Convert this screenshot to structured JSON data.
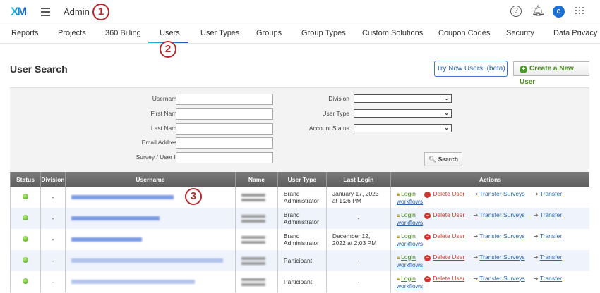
{
  "header": {
    "logo": "XM",
    "section": "Admin",
    "avatar_initial": "C"
  },
  "annotations": [
    "1",
    "2",
    "3"
  ],
  "tabs": [
    "Reports",
    "Projects",
    "360 Billing",
    "Users",
    "User Types",
    "Groups",
    "Group Types",
    "Custom Solutions",
    "Coupon Codes",
    "Security",
    "Data Privacy"
  ],
  "active_tab": "Users",
  "page": {
    "title": "User Search",
    "try_button": "Try New Users! (beta)",
    "create_button": "Create a New User"
  },
  "search": {
    "fields": [
      "Username",
      "First Name",
      "Last Name",
      "Email Address",
      "Survey / User ID"
    ],
    "selects": [
      "Division",
      "User Type",
      "Account Status"
    ],
    "search_button": "Search"
  },
  "table": {
    "headers": [
      "Status",
      "Division",
      "Username",
      "Name",
      "User Type",
      "Last Login",
      "Actions"
    ],
    "actions": {
      "login": "Login",
      "delete": "Delete User",
      "transfer_surveys": "Transfer Surveys",
      "transfer_workflows": "Transfer workflows"
    },
    "rows": [
      {
        "division": "-",
        "user_type": "Brand Administrator",
        "last_login": "January 17, 2023 at 1:26 PM"
      },
      {
        "division": "-",
        "user_type": "Brand Administrator",
        "last_login": "-"
      },
      {
        "division": "-",
        "user_type": "Brand Administrator",
        "last_login": "December 12, 2022 at 2:03 PM"
      },
      {
        "division": "-",
        "user_type": "Participant",
        "last_login": "-"
      },
      {
        "division": "-",
        "user_type": "Participant",
        "last_login": "-"
      }
    ]
  },
  "colors": {
    "accent": "#1a6ed8",
    "annotation": "#b3282d",
    "login": "#4a8a1e",
    "delete": "#d0342c",
    "link": "#2a64b0"
  }
}
